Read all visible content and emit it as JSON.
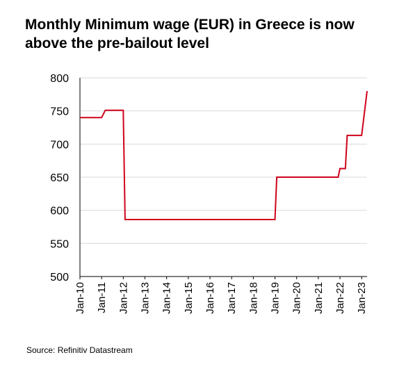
{
  "title_line1": "Monthly Minimum wage (EUR) in Greece is now",
  "title_line2": "above the pre-bailout level",
  "source": "Source: Refinitiv Datastream",
  "chart_data": {
    "type": "line",
    "title": "Monthly Minimum wage (EUR) in Greece is now above the pre-bailout level",
    "xlabel": "",
    "ylabel": "",
    "ylim": [
      500,
      800
    ],
    "yticks": [
      500,
      550,
      600,
      650,
      700,
      750,
      800
    ],
    "xticks": [
      "Jan-10",
      "Jan-11",
      "Jan-12",
      "Jan-13",
      "Jan-14",
      "Jan-15",
      "Jan-16",
      "Jan-17",
      "Jan-18",
      "Jan-19",
      "Jan-20",
      "Jan-21",
      "Jan-22",
      "Jan-23"
    ],
    "grid": "horizontal",
    "line_color": "#d0021b",
    "series": [
      {
        "x": [
          "Jan-10",
          "Jan-11",
          "Mar-11",
          "Jan-12",
          "Feb-12",
          "Jan-13",
          "Jan-14",
          "Jan-15",
          "Jan-16",
          "Jan-17",
          "Jan-18",
          "Jan-19",
          "Feb-19",
          "Jan-20",
          "Jan-21",
          "Dec-21",
          "Jan-22",
          "Apr-22",
          "May-22",
          "Dec-22",
          "Jan-23",
          "Apr-23"
        ],
        "values": [
          740,
          740,
          751,
          751,
          586,
          586,
          586,
          586,
          586,
          586,
          586,
          586,
          650,
          650,
          650,
          650,
          663,
          663,
          713,
          713,
          713,
          780
        ]
      }
    ]
  }
}
